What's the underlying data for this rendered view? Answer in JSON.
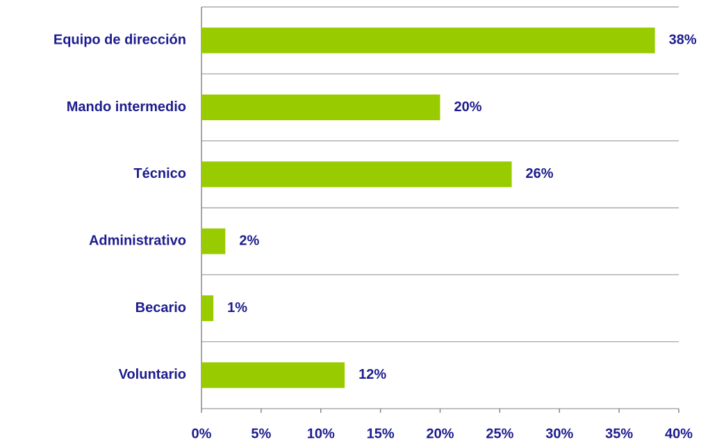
{
  "chart_data": {
    "type": "bar",
    "orientation": "horizontal",
    "categories": [
      "Equipo de dirección",
      "Mando intermedio",
      "Técnico",
      "Administrativo",
      "Becario",
      "Voluntario"
    ],
    "values": [
      38,
      20,
      26,
      2,
      1,
      12
    ],
    "value_labels": [
      "38%",
      "20%",
      "26%",
      "2%",
      "1%",
      "12%"
    ],
    "color": "#99cc00",
    "xlim": [
      0,
      40
    ],
    "xticks": [
      {
        "value": 0,
        "label": "0%"
      },
      {
        "value": 5,
        "label": "5%"
      },
      {
        "value": 10,
        "label": "10%"
      },
      {
        "value": 15,
        "label": "15%"
      },
      {
        "value": 20,
        "label": "20%"
      },
      {
        "value": 25,
        "label": "25%"
      },
      {
        "value": 30,
        "label": "30%"
      },
      {
        "value": 35,
        "label": "35%"
      },
      {
        "value": 40,
        "label": "40%"
      }
    ],
    "grid": false
  }
}
